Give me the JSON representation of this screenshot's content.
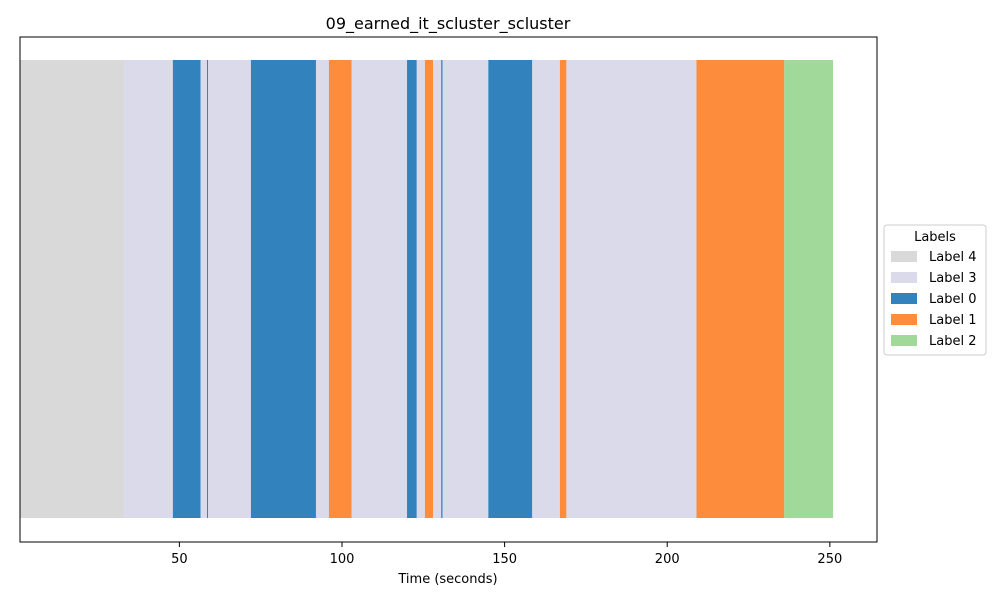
{
  "chart_data": {
    "type": "timeline",
    "title": "09_earned_it_scluster_scluster",
    "xlabel": "Time (seconds)",
    "ylabel": "",
    "xlim": [
      1,
      264.5
    ],
    "xticks": [
      50,
      100,
      150,
      200,
      250
    ],
    "xtick_labels": [
      "50",
      "100",
      "150",
      "200",
      "250"
    ],
    "grid": false,
    "legend": {
      "title": "Labels",
      "placement": "right-center",
      "entries": [
        {
          "label": "Label 4",
          "color": "#d9d9d9"
        },
        {
          "label": "Label 3",
          "color": "#dadaeb"
        },
        {
          "label": "Label 0",
          "color": "#3182bd"
        },
        {
          "label": "Label 1",
          "color": "#fd8d3c"
        },
        {
          "label": "Label 2",
          "color": "#a1d99b"
        }
      ]
    },
    "segments": [
      {
        "start": 1.0,
        "end": 33.0,
        "label": "Label 4"
      },
      {
        "start": 33.0,
        "end": 48.0,
        "label": "Label 3"
      },
      {
        "start": 48.0,
        "end": 56.5,
        "label": "Label 0"
      },
      {
        "start": 56.5,
        "end": 58.5,
        "label": "Label 3"
      },
      {
        "start": 58.5,
        "end": 58.8,
        "label": "Label 0"
      },
      {
        "start": 58.8,
        "end": 72.0,
        "label": "Label 3"
      },
      {
        "start": 72.0,
        "end": 92.0,
        "label": "Label 0"
      },
      {
        "start": 92.0,
        "end": 96.0,
        "label": "Label 3"
      },
      {
        "start": 96.0,
        "end": 103.0,
        "label": "Label 1"
      },
      {
        "start": 103.0,
        "end": 120.0,
        "label": "Label 3"
      },
      {
        "start": 120.0,
        "end": 123.0,
        "label": "Label 0"
      },
      {
        "start": 123.0,
        "end": 125.5,
        "label": "Label 3"
      },
      {
        "start": 125.5,
        "end": 128.0,
        "label": "Label 1"
      },
      {
        "start": 128.0,
        "end": 130.5,
        "label": "Label 3"
      },
      {
        "start": 130.5,
        "end": 130.9,
        "label": "Label 0"
      },
      {
        "start": 130.9,
        "end": 145.0,
        "label": "Label 3"
      },
      {
        "start": 145.0,
        "end": 158.5,
        "label": "Label 0"
      },
      {
        "start": 158.5,
        "end": 167.0,
        "label": "Label 3"
      },
      {
        "start": 167.0,
        "end": 169.0,
        "label": "Label 1"
      },
      {
        "start": 169.0,
        "end": 209.0,
        "label": "Label 3"
      },
      {
        "start": 209.0,
        "end": 236.0,
        "label": "Label 1"
      },
      {
        "start": 236.0,
        "end": 251.0,
        "label": "Label 2"
      }
    ]
  }
}
